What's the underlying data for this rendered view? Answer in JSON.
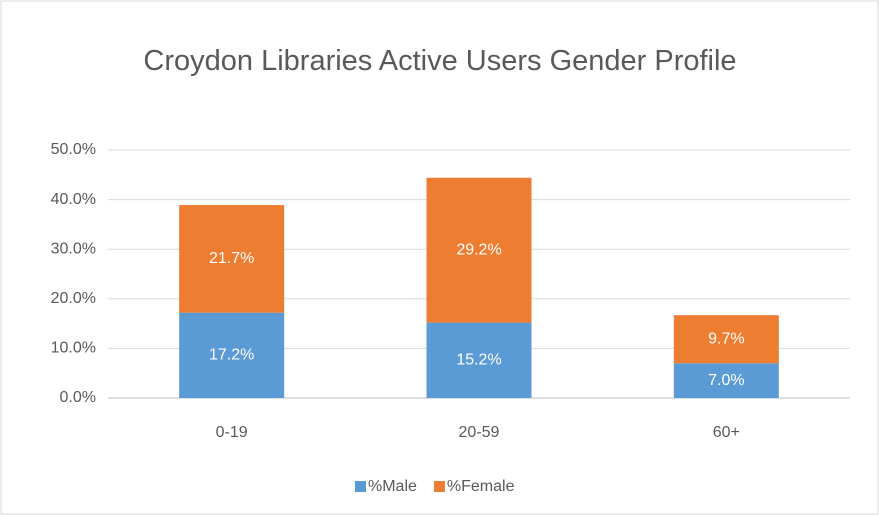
{
  "chart_data": {
    "type": "stacked_bar",
    "title": "Croydon Libraries Active Users Gender Profile",
    "categories": [
      "0-19",
      "20-59",
      "60+"
    ],
    "series": [
      {
        "name": "%Male",
        "color": "#5b9bd5",
        "values": [
          17.2,
          15.2,
          7.0
        ],
        "value_labels": [
          "17.2%",
          "15.2%",
          "7.0%"
        ]
      },
      {
        "name": "%Female",
        "color": "#ed7d31",
        "values": [
          21.7,
          29.2,
          9.7
        ],
        "value_labels": [
          "21.7%",
          "29.2%",
          "9.7%"
        ]
      }
    ],
    "ylim": [
      0,
      50
    ],
    "yticks": [
      {
        "value": 0,
        "label": "0.0%"
      },
      {
        "value": 10,
        "label": "10.0%"
      },
      {
        "value": 20,
        "label": "20.0%"
      },
      {
        "value": 30,
        "label": "30.0%"
      },
      {
        "value": 40,
        "label": "40.0%"
      },
      {
        "value": 50,
        "label": "50.0%"
      }
    ],
    "grid": true,
    "legend": "bottom"
  }
}
